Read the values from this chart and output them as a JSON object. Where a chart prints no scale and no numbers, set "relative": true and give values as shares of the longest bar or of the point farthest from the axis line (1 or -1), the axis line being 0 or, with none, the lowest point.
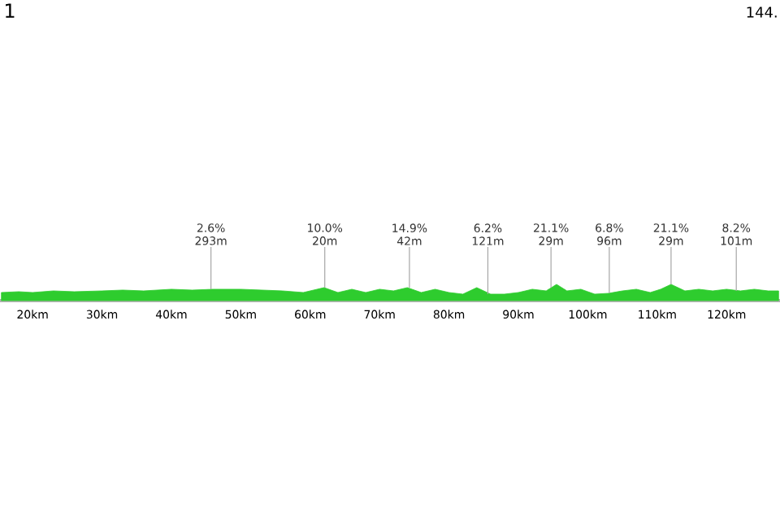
{
  "chart_data": {
    "type": "area",
    "relative": true,
    "color": "#2ecc2e",
    "x": [
      15.5,
      18,
      20,
      23,
      26,
      30,
      33,
      36,
      40,
      43,
      46,
      50,
      53,
      56,
      59,
      62,
      64,
      66,
      68,
      70,
      72,
      74,
      76,
      78,
      80,
      82,
      84,
      86,
      88,
      90,
      92,
      94,
      95.5,
      97,
      99,
      101,
      103,
      105,
      107,
      109,
      110.5,
      112,
      114,
      116,
      118,
      120,
      122,
      124,
      126,
      127.5
    ],
    "values": [
      0.5,
      0.55,
      0.5,
      0.6,
      0.55,
      0.6,
      0.65,
      0.6,
      0.7,
      0.65,
      0.7,
      0.7,
      0.65,
      0.6,
      0.5,
      0.8,
      0.5,
      0.7,
      0.5,
      0.7,
      0.6,
      0.8,
      0.5,
      0.7,
      0.5,
      0.4,
      0.8,
      0.4,
      0.4,
      0.5,
      0.7,
      0.6,
      1,
      0.6,
      0.7,
      0.4,
      0.45,
      0.6,
      0.7,
      0.5,
      0.7,
      1,
      0.6,
      0.7,
      0.6,
      0.7,
      0.6,
      0.7,
      0.6,
      0.6
    ],
    "xlim": [
      15.3,
      127.7
    ],
    "xticks": [
      {
        "value": 20,
        "label": "20km"
      },
      {
        "value": 30,
        "label": "30km"
      },
      {
        "value": 40,
        "label": "40km"
      },
      {
        "value": 50,
        "label": "50km"
      },
      {
        "value": 60,
        "label": "60km"
      },
      {
        "value": 70,
        "label": "70km"
      },
      {
        "value": 80,
        "label": "80km"
      },
      {
        "value": 90,
        "label": "90km"
      },
      {
        "value": 100,
        "label": "100km"
      },
      {
        "value": 110,
        "label": "110km"
      },
      {
        "value": 120,
        "label": "120km"
      }
    ],
    "grid": false,
    "annotations": [
      "1",
      "144.",
      {
        "text": "2.6% 293m",
        "x": 45.7,
        "y": 0.7
      },
      {
        "text": "10.0% 20m",
        "x": 62.1,
        "y": 0.8
      },
      {
        "text": "14.9% 42m",
        "x": 74.3,
        "y": 0.8
      },
      {
        "text": "6.2% 121m",
        "x": 85.6,
        "y": 0.4
      },
      {
        "text": "21.1% 29m",
        "x": 94.7,
        "y": 0.8
      },
      {
        "text": "6.8% 96m",
        "x": 103.1,
        "y": 0.45
      },
      {
        "text": "21.1% 29m",
        "x": 112,
        "y": 1
      },
      {
        "text": "8.2% 101m",
        "x": 121.4,
        "y": 0.6
      }
    ]
  }
}
